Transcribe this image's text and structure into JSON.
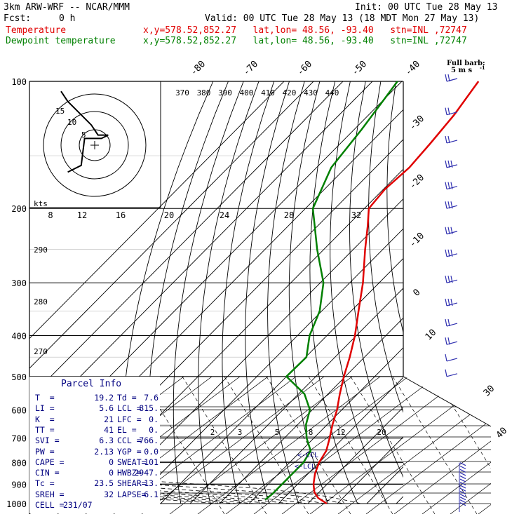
{
  "header": {
    "model": "3km ARW-WRF -- NCAR/MMM",
    "init": "Init: 00 UTC Tue 28 May 13",
    "fcst_label": "Fcst:",
    "fcst_value": "0 h",
    "valid": "Valid: 00 UTC Tue 28 May 13 (18 MDT Mon 27 May 13)",
    "temp_label": "Temperature",
    "dew_label": "Dewpoint temperature",
    "location": "x,y=578.52,852.27   lat,lon= 48.56, -93.40   stn=INL ,72747",
    "location2": "x,y=578.52,852.27   lat,lon= 48.56, -93.40   stn=INL ,72747"
  },
  "colors": {
    "temperature": "#e00000",
    "dewpoint": "#008000",
    "barb": "#3030b0",
    "parcel_text": "#000080"
  },
  "barb_label": "Full barb:",
  "barb_value": "5 m s",
  "barb_unit_exp": "-1",
  "hodograph": {
    "units": "kts",
    "ring_labels": [
      "5",
      "10",
      "15"
    ]
  },
  "parcel_info": {
    "title": "Parcel Info",
    "rows": [
      [
        "T  =",
        "19.2",
        "Td =",
        "7.6"
      ],
      [
        "LI =",
        "5.6",
        "LCL =",
        "815."
      ],
      [
        "K  =",
        "21",
        "LFC =",
        "0."
      ],
      [
        "TT =",
        "41",
        "EL =",
        "0."
      ],
      [
        "SVI =",
        "6.3",
        "CCL =",
        "766."
      ],
      [
        "PW =",
        "2.13",
        "YGP =",
        "0.0"
      ],
      [
        "CAPE =",
        "0",
        "SWEAT=",
        "101"
      ],
      [
        "CIN =",
        "0",
        "HWBZ=",
        "2947."
      ],
      [
        "Tc =",
        "23.5",
        "SHEAR=",
        "13."
      ],
      [
        "SREH =",
        "32",
        "LAPSE=",
        "6.1"
      ],
      [
        "CELL =",
        "231/07",
        "",
        ""
      ]
    ]
  },
  "annotations": {
    "ccl": "<-CCL",
    "lcl": "<-LCL"
  },
  "chart_data": {
    "type": "line",
    "pressure_levels": [
      100,
      200,
      300,
      400,
      500,
      600,
      700,
      800,
      900,
      1000
    ],
    "pressure_labels": [
      "100",
      "200",
      "300",
      "400",
      "500",
      "600",
      "700",
      "800",
      "900",
      "1000"
    ],
    "isotherm_labels": [
      {
        "t": -80,
        "text": "-80"
      },
      {
        "t": -70,
        "text": "-70"
      },
      {
        "t": -60,
        "text": "-60"
      },
      {
        "t": -50,
        "text": "-50"
      },
      {
        "t": -40,
        "text": "-40"
      },
      {
        "t": -30,
        "text": "-30"
      },
      {
        "t": -20,
        "text": "-20"
      },
      {
        "t": -10,
        "text": "-10"
      },
      {
        "t": 0,
        "text": "0"
      },
      {
        "t": 10,
        "text": "10"
      },
      {
        "t": 30,
        "text": "30"
      },
      {
        "t": 40,
        "text": "40"
      }
    ],
    "theta_e_labels": [
      "370",
      "380",
      "390",
      "400",
      "410",
      "420",
      "430",
      "440"
    ],
    "theta_labels": [
      "290",
      "280",
      "270"
    ],
    "upper_labels": [
      "8",
      "12",
      "16",
      "20",
      "24",
      "28",
      "32"
    ],
    "lower_labels": [
      "2",
      "3",
      "5",
      "8",
      "12",
      "20"
    ],
    "temperature": [
      {
        "p": 1000,
        "t": 26.4
      },
      {
        "p": 970,
        "t": 21.6
      },
      {
        "p": 940,
        "t": 18.4
      },
      {
        "p": 900,
        "t": 15.4
      },
      {
        "p": 850,
        "t": 12.4
      },
      {
        "p": 800,
        "t": 10.0
      },
      {
        "p": 750,
        "t": 8.5
      },
      {
        "p": 700,
        "t": 5.4
      },
      {
        "p": 650,
        "t": 1.8
      },
      {
        "p": 600,
        "t": -1.6
      },
      {
        "p": 550,
        "t": -6.0
      },
      {
        "p": 500,
        "t": -10.5
      },
      {
        "p": 450,
        "t": -15.0
      },
      {
        "p": 400,
        "t": -20.5
      },
      {
        "p": 350,
        "t": -27.5
      },
      {
        "p": 300,
        "t": -35.5
      },
      {
        "p": 250,
        "t": -46.0
      },
      {
        "p": 220,
        "t": -53.0
      },
      {
        "p": 200,
        "t": -58.5
      },
      {
        "p": 180,
        "t": -59.5
      },
      {
        "p": 160,
        "t": -58.5
      },
      {
        "p": 140,
        "t": -59.5
      },
      {
        "p": 120,
        "t": -61.0
      },
      {
        "p": 100,
        "t": -64.0
      }
    ],
    "dewpoint": [
      {
        "p": 980,
        "t": 4.2
      },
      {
        "p": 950,
        "t": 4.7
      },
      {
        "p": 900,
        "t": 4.7
      },
      {
        "p": 850,
        "t": 4.7
      },
      {
        "p": 800,
        "t": 4.7
      },
      {
        "p": 750,
        "t": 3.2
      },
      {
        "p": 700,
        "t": -2.4
      },
      {
        "p": 650,
        "t": -7.2
      },
      {
        "p": 600,
        "t": -10.8
      },
      {
        "p": 550,
        "t": -18.0
      },
      {
        "p": 500,
        "t": -30.0
      },
      {
        "p": 450,
        "t": -29.7
      },
      {
        "p": 400,
        "t": -35.9
      },
      {
        "p": 350,
        "t": -40.7
      },
      {
        "p": 300,
        "t": -48.9
      },
      {
        "p": 250,
        "t": -62.3
      },
      {
        "p": 200,
        "t": -77.5
      },
      {
        "p": 160,
        "t": -85.0
      },
      {
        "p": 130,
        "t": -87.5
      },
      {
        "p": 110,
        "t": -90.0
      },
      {
        "p": 100,
        "t": -91.5
      }
    ],
    "hodograph_path": [
      [
        -8,
        -8
      ],
      [
        -4,
        -6
      ],
      [
        -3,
        2
      ],
      [
        2,
        2
      ],
      [
        4,
        3
      ],
      [
        1,
        3
      ],
      [
        -1,
        6
      ],
      [
        -3,
        8
      ],
      [
        -6,
        11
      ],
      [
        -8,
        13
      ],
      [
        -10,
        16
      ]
    ],
    "wind_barbs": [
      {
        "p": 100,
        "n": 2
      },
      {
        "p": 120,
        "n": 2
      },
      {
        "p": 140,
        "n": 2
      },
      {
        "p": 160,
        "n": 3
      },
      {
        "p": 180,
        "n": 3
      },
      {
        "p": 200,
        "n": 3
      },
      {
        "p": 230,
        "n": 3
      },
      {
        "p": 260,
        "n": 3
      },
      {
        "p": 300,
        "n": 3
      },
      {
        "p": 340,
        "n": 3
      },
      {
        "p": 380,
        "n": 2
      },
      {
        "p": 420,
        "n": 2
      },
      {
        "p": 460,
        "n": 1
      },
      {
        "p": 500,
        "n": 1
      }
    ]
  }
}
